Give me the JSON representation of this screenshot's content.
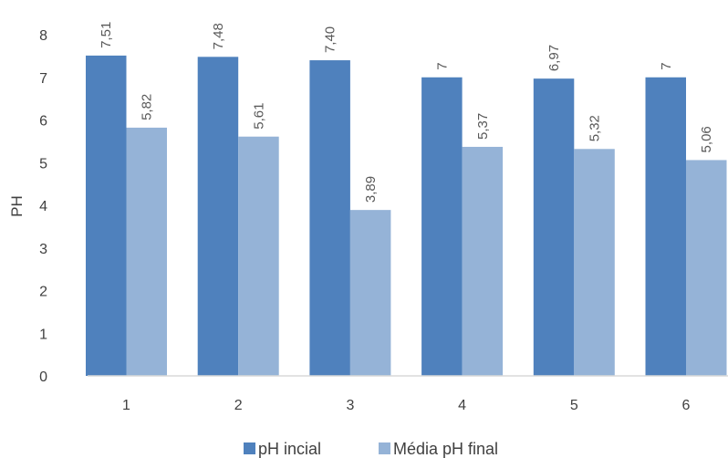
{
  "chart_data": {
    "type": "bar",
    "title": "",
    "xlabel": "",
    "ylabel": "PH",
    "ylim": [
      0,
      8
    ],
    "yticks": [
      0,
      1,
      2,
      3,
      4,
      5,
      6,
      7,
      8
    ],
    "categories": [
      "1",
      "2",
      "3",
      "4",
      "5",
      "6"
    ],
    "grid": false,
    "legend_position": "bottom",
    "series": [
      {
        "name": "pH incial",
        "color": "#4f81bd",
        "values": [
          7.51,
          7.48,
          7.4,
          7.0,
          6.97,
          7.0
        ],
        "labels": [
          "7,51",
          "7,48",
          "7,40",
          "7",
          "6,97",
          "7"
        ]
      },
      {
        "name": "Média pH final",
        "color": "#95b3d7",
        "values": [
          5.82,
          5.61,
          3.89,
          5.37,
          5.32,
          5.06
        ],
        "labels": [
          "5,82",
          "5,61",
          "3,89",
          "5,37",
          "5,32",
          "5,06"
        ]
      }
    ]
  }
}
